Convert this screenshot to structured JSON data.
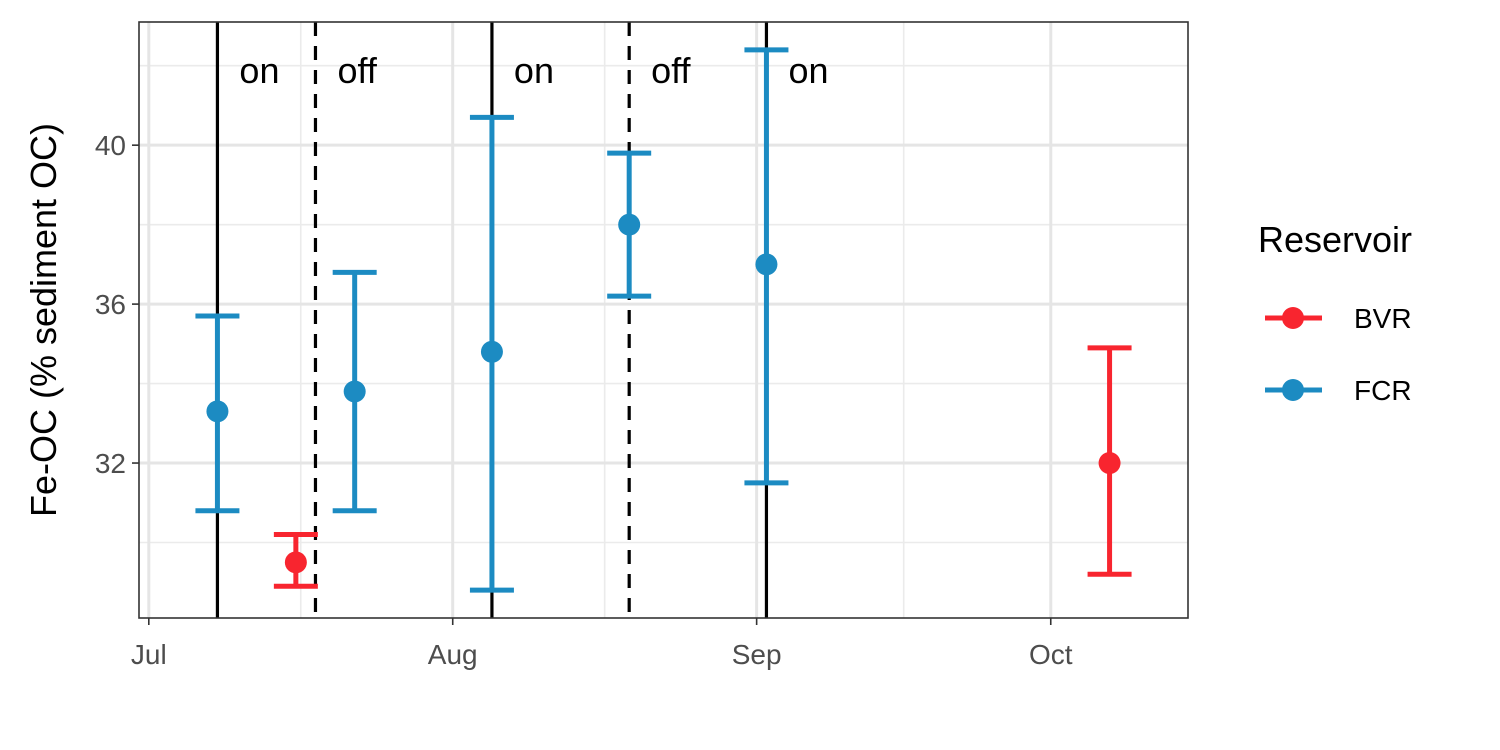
{
  "chart_data": {
    "type": "scatter",
    "title": "",
    "xlabel": "",
    "ylabel": "Fe-OC (% sediment OC)",
    "x_type": "date",
    "xlim": [
      "2019-06-30",
      "2019-10-15"
    ],
    "ylim": [
      28.1,
      43.1
    ],
    "x_ticks": [
      {
        "date": "2019-07-01",
        "label": "Jul"
      },
      {
        "date": "2019-08-01",
        "label": "Aug"
      },
      {
        "date": "2019-09-01",
        "label": "Sep"
      },
      {
        "date": "2019-10-01",
        "label": "Oct"
      }
    ],
    "y_ticks": [
      32,
      36,
      40
    ],
    "y_minor_ticks": [
      30,
      34,
      38,
      42
    ],
    "grid": true,
    "legend": {
      "title": "Reservoir",
      "position": "right"
    },
    "series": [
      {
        "name": "BVR",
        "color": "#f8252f",
        "points": [
          {
            "x": "2019-07-16",
            "y": 29.5,
            "ymin": 28.9,
            "ymax": 30.2
          },
          {
            "x": "2019-10-07",
            "y": 32.0,
            "ymin": 29.2,
            "ymax": 34.9
          }
        ]
      },
      {
        "name": "FCR",
        "color": "#1c8bc2",
        "points": [
          {
            "x": "2019-07-08",
            "y": 33.3,
            "ymin": 30.8,
            "ymax": 35.7
          },
          {
            "x": "2019-07-22",
            "y": 33.8,
            "ymin": 30.8,
            "ymax": 36.8
          },
          {
            "x": "2019-08-05",
            "y": 34.8,
            "ymin": 28.8,
            "ymax": 40.7
          },
          {
            "x": "2019-08-19",
            "y": 38.0,
            "ymin": 36.2,
            "ymax": 39.8
          },
          {
            "x": "2019-09-02",
            "y": 37.0,
            "ymin": 31.5,
            "ymax": 42.4
          }
        ]
      }
    ],
    "vlines": [
      {
        "x": "2019-07-08",
        "style": "solid",
        "label": "on"
      },
      {
        "x": "2019-07-18",
        "style": "dashed",
        "label": "off"
      },
      {
        "x": "2019-08-05",
        "style": "solid",
        "label": "on"
      },
      {
        "x": "2019-08-19",
        "style": "dashed",
        "label": "off"
      },
      {
        "x": "2019-09-02",
        "style": "solid",
        "label": "on"
      }
    ]
  }
}
